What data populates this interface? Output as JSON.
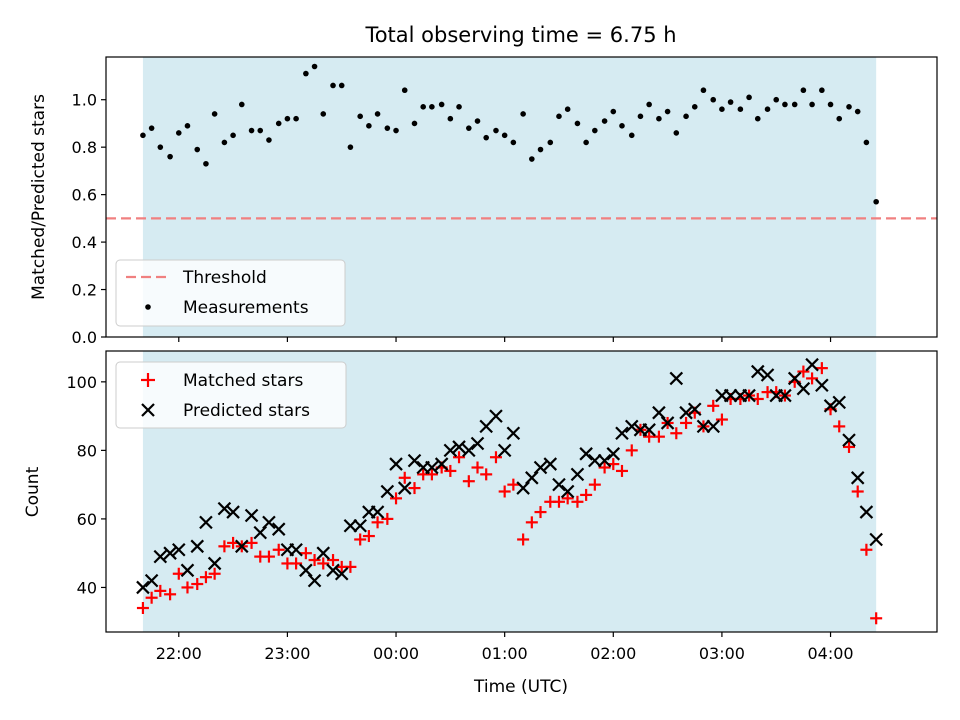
{
  "figure_title": "Total observing time = 6.75 h",
  "chart_data": [
    {
      "type": "scatter",
      "panel": "top",
      "ylabel": "Matched/Predicted stars",
      "ylim": [
        0,
        1.18
      ],
      "yticks": [
        0.0,
        0.2,
        0.4,
        0.6,
        0.8,
        1.0
      ],
      "ytick_labels": [
        "0.0",
        "0.2",
        "0.4",
        "0.6",
        "0.8",
        "1.0"
      ],
      "xlim": [
        21.33,
        4.98
      ],
      "shaded_span": [
        21.67,
        4.42
      ],
      "shade_color": "#add8e6",
      "threshold": {
        "name": "Threshold",
        "value": 0.5,
        "color": "#f08080",
        "style": "dashed"
      },
      "legend": {
        "position": "lower-left",
        "entries": [
          "Threshold",
          "Measurements"
        ]
      },
      "series": [
        {
          "name": "Measurements",
          "color": "#000000",
          "marker": "dot",
          "x": [
            21.67,
            21.75,
            21.83,
            21.92,
            22.0,
            22.08,
            22.17,
            22.25,
            22.33,
            22.42,
            22.5,
            22.58,
            22.67,
            22.75,
            22.83,
            22.92,
            23.0,
            23.08,
            23.17,
            23.25,
            23.33,
            23.42,
            23.5,
            23.58,
            23.67,
            23.75,
            23.83,
            23.92,
            24.0,
            24.08,
            24.17,
            24.25,
            24.33,
            24.42,
            24.5,
            24.58,
            24.67,
            24.75,
            24.83,
            24.92,
            25.0,
            25.08,
            25.17,
            25.25,
            25.33,
            25.42,
            25.5,
            25.58,
            25.67,
            25.75,
            25.83,
            25.92,
            26.0,
            26.08,
            26.17,
            26.25,
            26.33,
            26.42,
            26.5,
            26.58,
            26.67,
            26.75,
            26.83,
            26.92,
            27.0,
            27.08,
            27.17,
            27.25,
            27.33,
            27.42,
            27.5,
            27.58,
            27.67,
            27.75,
            27.83,
            27.92,
            28.0,
            28.08,
            28.17,
            28.25,
            28.33,
            28.42
          ],
          "y": [
            0.85,
            0.88,
            0.8,
            0.76,
            0.86,
            0.89,
            0.79,
            0.73,
            0.94,
            0.82,
            0.85,
            0.98,
            0.87,
            0.87,
            0.83,
            0.9,
            0.92,
            0.92,
            1.11,
            1.14,
            0.94,
            1.06,
            1.06,
            0.8,
            0.93,
            0.89,
            0.94,
            0.88,
            0.87,
            1.04,
            0.9,
            0.97,
            0.97,
            0.98,
            0.92,
            0.97,
            0.88,
            0.91,
            0.84,
            0.87,
            0.85,
            0.82,
            0.94,
            0.75,
            0.79,
            0.82,
            0.93,
            0.96,
            0.9,
            0.82,
            0.87,
            0.91,
            0.95,
            0.89,
            0.85,
            0.93,
            0.98,
            0.92,
            0.95,
            0.86,
            0.93,
            0.97,
            1.04,
            1.0,
            0.96,
            0.99,
            0.96,
            1.01,
            0.92,
            0.96,
            1.0,
            0.98,
            0.98,
            1.04,
            0.98,
            1.04,
            0.98,
            0.92,
            0.97,
            0.95,
            0.82,
            0.57
          ]
        }
      ]
    },
    {
      "type": "scatter",
      "panel": "bottom",
      "xlabel": "Time (UTC)",
      "ylabel": "Count",
      "ylim": [
        27,
        109
      ],
      "yticks": [
        40,
        60,
        80,
        100
      ],
      "ytick_labels": [
        "40",
        "60",
        "80",
        "100"
      ],
      "xlim": [
        21.33,
        4.98
      ],
      "xticks": [
        22,
        23,
        24,
        25,
        26,
        27,
        28
      ],
      "xtick_labels": [
        "22:00",
        "23:00",
        "00:00",
        "01:00",
        "02:00",
        "03:00",
        "04:00"
      ],
      "shaded_span": [
        21.67,
        4.42
      ],
      "shade_color": "#add8e6",
      "legend": {
        "position": "upper-left",
        "entries": [
          "Matched stars",
          "Predicted stars"
        ]
      },
      "series": [
        {
          "name": "Matched stars",
          "color": "#ff0000",
          "marker": "plus",
          "x": [
            21.67,
            21.75,
            21.83,
            21.92,
            22.0,
            22.08,
            22.17,
            22.25,
            22.33,
            22.42,
            22.5,
            22.58,
            22.67,
            22.75,
            22.83,
            22.92,
            23.0,
            23.08,
            23.17,
            23.25,
            23.33,
            23.42,
            23.5,
            23.58,
            23.67,
            23.75,
            23.83,
            23.92,
            24.0,
            24.08,
            24.17,
            24.25,
            24.33,
            24.42,
            24.5,
            24.58,
            24.67,
            24.75,
            24.83,
            24.92,
            25.0,
            25.08,
            25.17,
            25.25,
            25.33,
            25.42,
            25.5,
            25.58,
            25.67,
            25.75,
            25.83,
            25.92,
            26.0,
            26.08,
            26.17,
            26.25,
            26.33,
            26.42,
            26.5,
            26.58,
            26.67,
            26.75,
            26.83,
            26.92,
            27.0,
            27.08,
            27.17,
            27.25,
            27.33,
            27.42,
            27.5,
            27.58,
            27.67,
            27.75,
            27.83,
            27.92,
            28.0,
            28.08,
            28.17,
            28.25,
            28.33,
            28.42
          ],
          "y": [
            34,
            37,
            39,
            38,
            44,
            40,
            41,
            43,
            44,
            52,
            53,
            52,
            53,
            49,
            49,
            51,
            47,
            47,
            50,
            48,
            47,
            48,
            46,
            46,
            54,
            55,
            59,
            60,
            66,
            72,
            69,
            73,
            73,
            75,
            74,
            78,
            71,
            75,
            73,
            78,
            68,
            70,
            54,
            59,
            62,
            65,
            65,
            66,
            65,
            67,
            70,
            75,
            76,
            74,
            80,
            86,
            84,
            84,
            88,
            85,
            88,
            91,
            87,
            93,
            89,
            95,
            95,
            96,
            95,
            97,
            97,
            96,
            100,
            103,
            101,
            104,
            92,
            87,
            81,
            68,
            51,
            31
          ]
        },
        {
          "name": "Predicted stars",
          "color": "#000000",
          "marker": "x",
          "x": [
            21.67,
            21.75,
            21.83,
            21.92,
            22.0,
            22.08,
            22.17,
            22.25,
            22.33,
            22.42,
            22.5,
            22.58,
            22.67,
            22.75,
            22.83,
            22.92,
            23.0,
            23.08,
            23.17,
            23.25,
            23.33,
            23.42,
            23.5,
            23.58,
            23.67,
            23.75,
            23.83,
            23.92,
            24.0,
            24.08,
            24.17,
            24.25,
            24.33,
            24.42,
            24.5,
            24.58,
            24.67,
            24.75,
            24.83,
            24.92,
            25.0,
            25.08,
            25.17,
            25.25,
            25.33,
            25.42,
            25.5,
            25.58,
            25.67,
            25.75,
            25.83,
            25.92,
            26.0,
            26.08,
            26.17,
            26.25,
            26.33,
            26.42,
            26.5,
            26.58,
            26.67,
            26.75,
            26.83,
            26.92,
            27.0,
            27.08,
            27.17,
            27.25,
            27.33,
            27.42,
            27.5,
            27.58,
            27.67,
            27.75,
            27.83,
            27.92,
            28.0,
            28.08,
            28.17,
            28.25,
            28.33,
            28.42
          ],
          "y": [
            40,
            42,
            49,
            50,
            51,
            45,
            52,
            59,
            47,
            63,
            62,
            52,
            61,
            56,
            59,
            57,
            51,
            51,
            45,
            42,
            50,
            45,
            44,
            58,
            58,
            62,
            62,
            68,
            76,
            69,
            77,
            75,
            75,
            76,
            80,
            81,
            80,
            82,
            87,
            90,
            80,
            85,
            69,
            72,
            75,
            76,
            70,
            68,
            73,
            79,
            77,
            77,
            79,
            85,
            87,
            86,
            86,
            91,
            88,
            101,
            91,
            92,
            87,
            87,
            96,
            96,
            96,
            96,
            103,
            102,
            96,
            96,
            101,
            98,
            105,
            99,
            93,
            94,
            83,
            72,
            62,
            54
          ]
        }
      ]
    }
  ]
}
